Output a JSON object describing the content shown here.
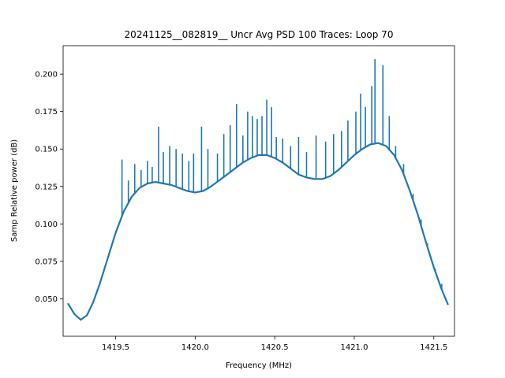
{
  "chart_data": {
    "type": "line",
    "title": "20241125__082819__ Uncr Avg PSD 100 Traces: Loop 70",
    "xlabel": "Frequency (MHz)",
    "ylabel": "Samp Relative power (dB)",
    "xlim": [
      1419.17,
      1421.63
    ],
    "ylim": [
      0.025,
      0.219
    ],
    "x_ticks": [
      1419.5,
      1420.0,
      1420.5,
      1421.0,
      1421.5
    ],
    "x_tick_labels": [
      "1419.5",
      "1420.0",
      "1420.5",
      "1421.0",
      "1421.5"
    ],
    "y_ticks": [
      0.05,
      0.075,
      0.1,
      0.125,
      0.15,
      0.175,
      0.2
    ],
    "y_tick_labels": [
      "0.050",
      "0.075",
      "0.100",
      "0.125",
      "0.150",
      "0.175",
      "0.200"
    ],
    "grid": false,
    "series": [
      {
        "color": "#1f77b4",
        "x": [
          1419.2,
          1419.24,
          1419.28,
          1419.32,
          1419.36,
          1419.4,
          1419.45,
          1419.5,
          1419.55,
          1419.6,
          1419.65,
          1419.7,
          1419.75,
          1419.8,
          1419.85,
          1419.9,
          1419.95,
          1420.0,
          1420.05,
          1420.1,
          1420.15,
          1420.2,
          1420.25,
          1420.3,
          1420.35,
          1420.4,
          1420.45,
          1420.5,
          1420.55,
          1420.6,
          1420.65,
          1420.7,
          1420.75,
          1420.8,
          1420.85,
          1420.9,
          1420.95,
          1421.0,
          1421.05,
          1421.1,
          1421.15,
          1421.2,
          1421.25,
          1421.3,
          1421.35,
          1421.4,
          1421.45,
          1421.5,
          1421.55,
          1421.59
        ],
        "y": [
          0.047,
          0.04,
          0.036,
          0.039,
          0.048,
          0.06,
          0.077,
          0.094,
          0.108,
          0.118,
          0.124,
          0.127,
          0.128,
          0.127,
          0.126,
          0.124,
          0.122,
          0.121,
          0.122,
          0.125,
          0.129,
          0.133,
          0.137,
          0.141,
          0.144,
          0.146,
          0.146,
          0.144,
          0.141,
          0.137,
          0.133,
          0.131,
          0.13,
          0.13,
          0.132,
          0.136,
          0.141,
          0.146,
          0.15,
          0.153,
          0.154,
          0.152,
          0.146,
          0.136,
          0.122,
          0.106,
          0.088,
          0.071,
          0.056,
          0.046
        ]
      }
    ],
    "spikes": [
      {
        "x": 1419.54,
        "y": 0.143
      },
      {
        "x": 1419.58,
        "y": 0.129
      },
      {
        "x": 1419.62,
        "y": 0.14
      },
      {
        "x": 1419.66,
        "y": 0.136
      },
      {
        "x": 1419.7,
        "y": 0.142
      },
      {
        "x": 1419.73,
        "y": 0.138
      },
      {
        "x": 1419.77,
        "y": 0.165
      },
      {
        "x": 1419.8,
        "y": 0.148
      },
      {
        "x": 1419.84,
        "y": 0.152
      },
      {
        "x": 1419.88,
        "y": 0.15
      },
      {
        "x": 1419.92,
        "y": 0.147
      },
      {
        "x": 1419.96,
        "y": 0.142
      },
      {
        "x": 1419.99,
        "y": 0.147
      },
      {
        "x": 1420.04,
        "y": 0.165
      },
      {
        "x": 1420.08,
        "y": 0.15
      },
      {
        "x": 1420.14,
        "y": 0.147
      },
      {
        "x": 1420.18,
        "y": 0.16
      },
      {
        "x": 1420.22,
        "y": 0.166
      },
      {
        "x": 1420.26,
        "y": 0.18
      },
      {
        "x": 1420.3,
        "y": 0.159
      },
      {
        "x": 1420.33,
        "y": 0.175
      },
      {
        "x": 1420.36,
        "y": 0.172
      },
      {
        "x": 1420.39,
        "y": 0.17
      },
      {
        "x": 1420.42,
        "y": 0.172
      },
      {
        "x": 1420.45,
        "y": 0.183
      },
      {
        "x": 1420.48,
        "y": 0.178
      },
      {
        "x": 1420.51,
        "y": 0.158
      },
      {
        "x": 1420.55,
        "y": 0.157
      },
      {
        "x": 1420.6,
        "y": 0.152
      },
      {
        "x": 1420.65,
        "y": 0.158
      },
      {
        "x": 1420.7,
        "y": 0.148
      },
      {
        "x": 1420.76,
        "y": 0.159
      },
      {
        "x": 1420.82,
        "y": 0.155
      },
      {
        "x": 1420.87,
        "y": 0.16
      },
      {
        "x": 1420.92,
        "y": 0.162
      },
      {
        "x": 1420.96,
        "y": 0.169
      },
      {
        "x": 1421.01,
        "y": 0.175
      },
      {
        "x": 1421.04,
        "y": 0.187
      },
      {
        "x": 1421.07,
        "y": 0.178
      },
      {
        "x": 1421.11,
        "y": 0.192
      },
      {
        "x": 1421.13,
        "y": 0.21
      },
      {
        "x": 1421.18,
        "y": 0.206
      },
      {
        "x": 1421.22,
        "y": 0.172
      },
      {
        "x": 1421.26,
        "y": 0.152
      },
      {
        "x": 1421.31,
        "y": 0.14
      },
      {
        "x": 1421.37,
        "y": 0.12
      },
      {
        "x": 1421.42,
        "y": 0.103
      },
      {
        "x": 1421.46,
        "y": 0.087
      },
      {
        "x": 1421.51,
        "y": 0.07
      },
      {
        "x": 1421.55,
        "y": 0.06
      }
    ]
  }
}
